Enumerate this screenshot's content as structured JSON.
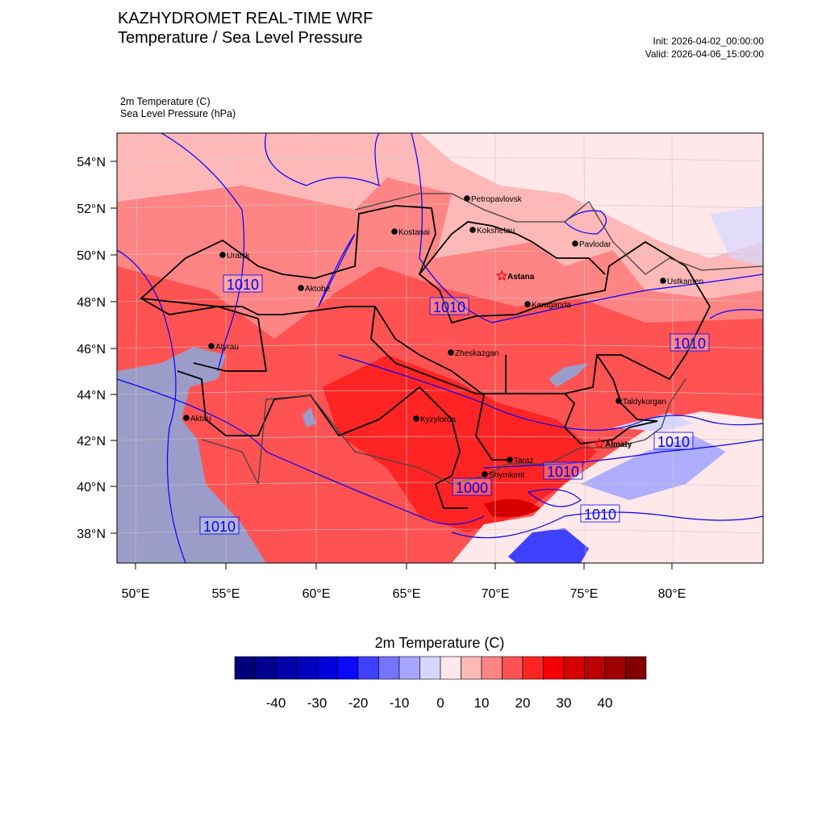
{
  "header": {
    "title_line1": "KAZHYDROMET REAL-TIME WRF",
    "title_line2": "Temperature / Sea Level Pressure",
    "init": "Init: 2026-04-02_00:00:00",
    "valid": "Valid: 2026-04-06_15:00:00",
    "field1": "2m Temperature   (C)",
    "field2": "Sea Level Pressure   (hPa)"
  },
  "axes": {
    "lat_ticks": [
      "54°N",
      "52°N",
      "50°N",
      "48°N",
      "46°N",
      "44°N",
      "42°N",
      "40°N",
      "38°N"
    ],
    "lon_ticks": [
      "50°E",
      "55°E",
      "60°E",
      "65°E",
      "70°E",
      "75°E",
      "80°E"
    ]
  },
  "cities": [
    {
      "name": "Petropavlovsk",
      "type": "dot"
    },
    {
      "name": "Kokshetau",
      "type": "dot"
    },
    {
      "name": "Kostanai",
      "type": "dot"
    },
    {
      "name": "Uralsk",
      "type": "dot"
    },
    {
      "name": "Aktobe",
      "type": "dot"
    },
    {
      "name": "Pavlodar",
      "type": "dot"
    },
    {
      "name": "Astana",
      "type": "capital"
    },
    {
      "name": "Karaganda",
      "type": "dot"
    },
    {
      "name": "Ustkamen",
      "type": "dot"
    },
    {
      "name": "Atyrau",
      "type": "dot"
    },
    {
      "name": "Zheskazgan",
      "type": "dot"
    },
    {
      "name": "Aktau",
      "type": "dot"
    },
    {
      "name": "Kyzylorda",
      "type": "dot"
    },
    {
      "name": "Taldykorgan",
      "type": "dot"
    },
    {
      "name": "Almaty",
      "type": "capital"
    },
    {
      "name": "Taraz",
      "type": "dot"
    },
    {
      "name": "Shymkent",
      "type": "dot"
    }
  ],
  "isobar_labels": [
    "1010",
    "1010",
    "1010",
    "1010",
    "1010",
    "1010",
    "1010",
    "1000"
  ],
  "colorbar": {
    "title": "2m Temperature  (C)",
    "levels": [
      -50,
      -45,
      -40,
      -35,
      -30,
      -25,
      -20,
      -15,
      -10,
      -5,
      0,
      5,
      10,
      15,
      20,
      25,
      30,
      35,
      40,
      45,
      50
    ],
    "colors": [
      "#00007a",
      "#000090",
      "#0000a6",
      "#0000c0",
      "#0000dc",
      "#0a0aff",
      "#4040ff",
      "#7474ff",
      "#a6a6ff",
      "#d6d6ff",
      "#ffe8ea",
      "#ffb8b8",
      "#ff8484",
      "#ff5252",
      "#ff2424",
      "#f50000",
      "#d60000",
      "#ba0000",
      "#a00000",
      "#800000"
    ],
    "tick_labels": [
      "-40",
      "-30",
      "-20",
      "-10",
      "0",
      "10",
      "20",
      "30",
      "40"
    ]
  },
  "colors": {
    "isobar": "#0000ff",
    "border": "#000000",
    "caspian": "#9c9cc8"
  }
}
